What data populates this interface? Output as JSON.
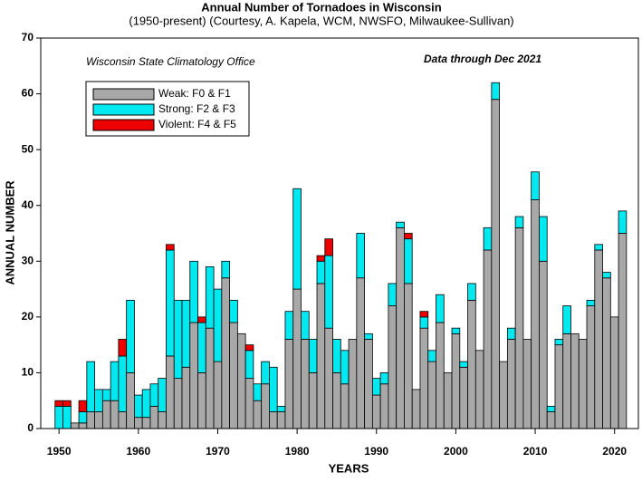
{
  "chart_data": {
    "type": "stacked_bar",
    "title": "Annual Number of Tornadoes in Wisconsin",
    "subtitle": "(1950-present) (Courtesy, A. Kapela, WCM, NWSFO, Milwaukee-Sullivan)",
    "annotations": [
      "Wisconsin State Climatology Office",
      "Data through Dec 2021"
    ],
    "x_label": "YEARS",
    "y_label": "ANNUAL NUMBER",
    "x": [
      1950,
      1951,
      1952,
      1953,
      1954,
      1955,
      1956,
      1957,
      1958,
      1959,
      1960,
      1961,
      1962,
      1963,
      1964,
      1965,
      1966,
      1967,
      1968,
      1969,
      1970,
      1971,
      1972,
      1973,
      1974,
      1975,
      1976,
      1977,
      1978,
      1979,
      1980,
      1981,
      1982,
      1983,
      1984,
      1985,
      1986,
      1987,
      1988,
      1989,
      1990,
      1991,
      1992,
      1993,
      1994,
      1995,
      1996,
      1997,
      1998,
      1999,
      2000,
      2001,
      2002,
      2003,
      2004,
      2005,
      2006,
      2007,
      2008,
      2009,
      2010,
      2011,
      2012,
      2013,
      2014,
      2015,
      2016,
      2017,
      2018,
      2019,
      2020,
      2021
    ],
    "series": [
      {
        "name": "Weak: F0 & F1",
        "color": "#a8a8a8",
        "values": [
          0,
          0,
          1,
          1,
          3,
          3,
          5,
          5,
          3,
          10,
          2,
          2,
          4,
          3,
          13,
          9,
          11,
          19,
          10,
          18,
          12,
          27,
          19,
          17,
          9,
          5,
          8,
          3,
          3,
          16,
          25,
          16,
          10,
          26,
          18,
          10,
          8,
          16,
          27,
          16,
          6,
          8,
          22,
          36,
          26,
          7,
          18,
          12,
          19,
          10,
          17,
          11,
          23,
          14,
          32,
          59,
          12,
          16,
          36,
          16,
          41,
          30,
          3,
          15,
          17,
          17,
          16,
          22,
          32,
          27,
          20,
          35
        ]
      },
      {
        "name": "Strong: F2 & F3",
        "color": "#00e8f0",
        "values": [
          4,
          4,
          0,
          2,
          9,
          4,
          2,
          7,
          10,
          13,
          4,
          5,
          4,
          6,
          19,
          14,
          12,
          11,
          9,
          11,
          13,
          3,
          4,
          0,
          5,
          3,
          4,
          8,
          1,
          5,
          18,
          5,
          6,
          4,
          13,
          6,
          6,
          0,
          8,
          1,
          3,
          2,
          4,
          1,
          8,
          0,
          2,
          2,
          5,
          0,
          1,
          1,
          3,
          0,
          4,
          3,
          0,
          2,
          2,
          0,
          5,
          8,
          1,
          1,
          5,
          0,
          0,
          1,
          1,
          1,
          0,
          4
        ]
      },
      {
        "name": "Violent: F4 & F5",
        "color": "#ee0000",
        "values": [
          1,
          1,
          0,
          2,
          0,
          0,
          0,
          0,
          3,
          0,
          0,
          0,
          0,
          0,
          1,
          0,
          0,
          0,
          1,
          0,
          0,
          0,
          0,
          0,
          1,
          0,
          0,
          0,
          0,
          0,
          0,
          0,
          0,
          1,
          3,
          0,
          0,
          0,
          0,
          0,
          0,
          0,
          0,
          0,
          1,
          0,
          1,
          0,
          0,
          0,
          0,
          0,
          0,
          0,
          0,
          0,
          0,
          0,
          0,
          0,
          0,
          0,
          0,
          0,
          0,
          0,
          0,
          0,
          0,
          0,
          0,
          0
        ]
      }
    ],
    "xlim": [
      1947.7,
      2023
    ],
    "xticks": [
      1950,
      1960,
      1970,
      1980,
      1990,
      2000,
      2010,
      2020
    ],
    "ylim": [
      0,
      70
    ],
    "yticks": [
      0,
      10,
      20,
      30,
      40,
      50,
      60,
      70
    ],
    "grid": false,
    "legend": "upper left"
  }
}
